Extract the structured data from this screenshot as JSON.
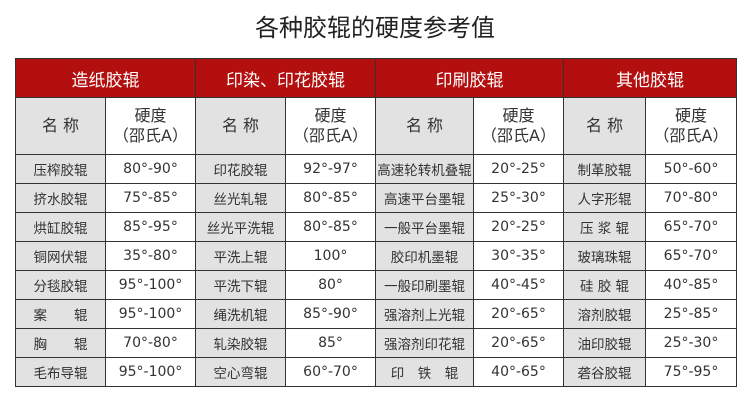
{
  "title": "各种胶辊的硬度参考值",
  "name_header": "名 称",
  "hardness_header_line1": "硬度",
  "hardness_header_line2": "（邵氏A）",
  "colors": {
    "header_bg": "#b30f0f",
    "name_bg": "#e2e2e2"
  },
  "groups": [
    {
      "label": "造纸胶辊",
      "rows": [
        {
          "name": "压榨胶辊",
          "hardness": "80°-90°"
        },
        {
          "name": "挤水胶辊",
          "hardness": "75°-85°"
        },
        {
          "name": "烘缸胶辊",
          "hardness": "85°-95°"
        },
        {
          "name": "铜网伏辊",
          "hardness": "35°-80°"
        },
        {
          "name": "分毯胶辊",
          "hardness": "95°-100°"
        },
        {
          "name": "案　　辊",
          "hardness": "95°-100°"
        },
        {
          "name": "胸　　辊",
          "hardness": "70°-80°"
        },
        {
          "name": "毛布导辊",
          "hardness": "95°-100°"
        }
      ]
    },
    {
      "label": "印染、印花胶辊",
      "rows": [
        {
          "name": "印花胶辊",
          "hardness": "92°-97°"
        },
        {
          "name": "丝光轧辊",
          "hardness": "80°-85°"
        },
        {
          "name": "丝光平洗辊",
          "hardness": "80°-85°"
        },
        {
          "name": "平洗上辊",
          "hardness": "100°"
        },
        {
          "name": "平洗下辊",
          "hardness": "80°"
        },
        {
          "name": "绳洗机辊",
          "hardness": "85°-90°"
        },
        {
          "name": "轧染胶辊",
          "hardness": "85°"
        },
        {
          "name": "空心弯辊",
          "hardness": "60°-70°"
        }
      ]
    },
    {
      "label": "印刷胶辊",
      "rows": [
        {
          "name": "高速轮转机叠辊",
          "hardness": "20°-25°"
        },
        {
          "name": "高速平台墨辊",
          "hardness": "25°-30°"
        },
        {
          "name": "一般平台墨辊",
          "hardness": "20°-25°"
        },
        {
          "name": "胶印机墨辊",
          "hardness": "30°-35°"
        },
        {
          "name": "一般印刷墨辊",
          "hardness": "40°-45°"
        },
        {
          "name": "强溶剂上光辊",
          "hardness": "20°-65°"
        },
        {
          "name": "强溶剂印花辊",
          "hardness": "20°-65°"
        },
        {
          "name": "印　铁　辊",
          "hardness": "40°-65°"
        }
      ]
    },
    {
      "label": "其他胶辊",
      "rows": [
        {
          "name": "制革胶辊",
          "hardness": "50°-60°"
        },
        {
          "name": "人字形辊",
          "hardness": "70°-80°"
        },
        {
          "name": "压 浆 辊",
          "hardness": "65°-70°"
        },
        {
          "name": "玻璃珠辊",
          "hardness": "65°-70°"
        },
        {
          "name": "硅 胶 辊",
          "hardness": "40°-85°"
        },
        {
          "name": "溶剂胶辊",
          "hardness": "25°-85°"
        },
        {
          "name": "油印胶辊",
          "hardness": "25°-30°"
        },
        {
          "name": "砻谷胶辊",
          "hardness": "75°-95°"
        }
      ]
    }
  ]
}
